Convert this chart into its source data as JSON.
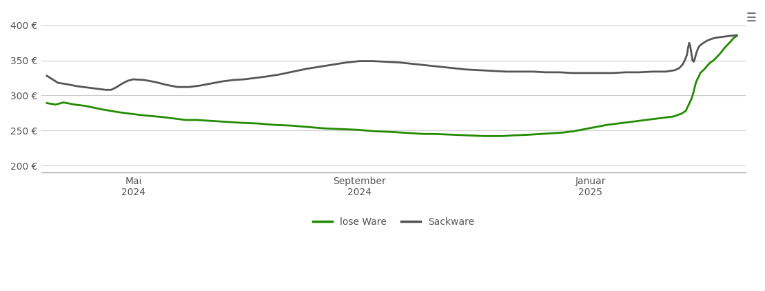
{
  "lose_ware": [
    [
      0,
      289
    ],
    [
      8,
      287
    ],
    [
      15,
      290
    ],
    [
      25,
      287
    ],
    [
      35,
      285
    ],
    [
      50,
      280
    ],
    [
      65,
      276
    ],
    [
      85,
      272
    ],
    [
      105,
      269
    ],
    [
      115,
      267
    ],
    [
      125,
      265
    ],
    [
      135,
      265
    ],
    [
      145,
      264
    ],
    [
      155,
      263
    ],
    [
      165,
      262
    ],
    [
      175,
      261
    ],
    [
      190,
      260
    ],
    [
      205,
      258
    ],
    [
      220,
      257
    ],
    [
      235,
      255
    ],
    [
      250,
      253
    ],
    [
      265,
      252
    ],
    [
      280,
      251
    ],
    [
      295,
      249
    ],
    [
      310,
      248
    ],
    [
      320,
      247
    ],
    [
      330,
      246
    ],
    [
      340,
      245
    ],
    [
      350,
      245
    ],
    [
      365,
      244
    ],
    [
      380,
      243
    ],
    [
      395,
      242
    ],
    [
      410,
      242
    ],
    [
      420,
      243
    ],
    [
      435,
      244
    ],
    [
      445,
      245
    ],
    [
      455,
      246
    ],
    [
      465,
      247
    ],
    [
      475,
      249
    ],
    [
      485,
      252
    ],
    [
      495,
      255
    ],
    [
      505,
      258
    ],
    [
      515,
      260
    ],
    [
      525,
      262
    ],
    [
      535,
      264
    ],
    [
      545,
      266
    ],
    [
      555,
      268
    ],
    [
      565,
      270
    ],
    [
      572,
      274
    ],
    [
      576,
      278
    ],
    [
      578,
      285
    ],
    [
      581,
      295
    ],
    [
      583,
      305
    ],
    [
      584,
      312
    ],
    [
      585,
      318
    ],
    [
      586,
      322
    ],
    [
      587,
      325
    ],
    [
      588,
      328
    ],
    [
      589,
      332
    ],
    [
      591,
      335
    ],
    [
      593,
      338
    ],
    [
      595,
      342
    ],
    [
      598,
      347
    ],
    [
      601,
      350
    ],
    [
      604,
      355
    ],
    [
      607,
      360
    ],
    [
      611,
      368
    ],
    [
      614,
      373
    ],
    [
      617,
      378
    ],
    [
      619,
      382
    ],
    [
      622,
      385
    ]
  ],
  "sackware": [
    [
      0,
      328
    ],
    [
      5,
      323
    ],
    [
      10,
      318
    ],
    [
      18,
      316
    ],
    [
      28,
      313
    ],
    [
      38,
      311
    ],
    [
      48,
      309
    ],
    [
      53,
      308
    ],
    [
      58,
      308
    ],
    [
      63,
      312
    ],
    [
      68,
      317
    ],
    [
      73,
      321
    ],
    [
      78,
      323
    ],
    [
      88,
      322
    ],
    [
      98,
      319
    ],
    [
      108,
      315
    ],
    [
      118,
      312
    ],
    [
      128,
      312
    ],
    [
      138,
      314
    ],
    [
      148,
      317
    ],
    [
      158,
      320
    ],
    [
      168,
      322
    ],
    [
      178,
      323
    ],
    [
      188,
      325
    ],
    [
      198,
      327
    ],
    [
      210,
      330
    ],
    [
      222,
      334
    ],
    [
      234,
      338
    ],
    [
      246,
      341
    ],
    [
      258,
      344
    ],
    [
      270,
      347
    ],
    [
      282,
      349
    ],
    [
      294,
      349
    ],
    [
      306,
      348
    ],
    [
      318,
      347
    ],
    [
      330,
      345
    ],
    [
      342,
      343
    ],
    [
      354,
      341
    ],
    [
      366,
      339
    ],
    [
      378,
      337
    ],
    [
      390,
      336
    ],
    [
      402,
      335
    ],
    [
      414,
      334
    ],
    [
      426,
      334
    ],
    [
      438,
      334
    ],
    [
      450,
      333
    ],
    [
      462,
      333
    ],
    [
      474,
      332
    ],
    [
      486,
      332
    ],
    [
      498,
      332
    ],
    [
      510,
      332
    ],
    [
      522,
      333
    ],
    [
      534,
      333
    ],
    [
      546,
      334
    ],
    [
      558,
      334
    ],
    [
      566,
      336
    ],
    [
      570,
      339
    ],
    [
      573,
      344
    ],
    [
      575,
      350
    ],
    [
      577,
      358
    ],
    [
      578,
      368
    ],
    [
      579,
      375
    ],
    [
      580,
      370
    ],
    [
      581,
      360
    ],
    [
      582,
      350
    ],
    [
      583,
      348
    ],
    [
      584,
      352
    ],
    [
      585,
      358
    ],
    [
      586,
      363
    ],
    [
      587,
      367
    ],
    [
      588,
      370
    ],
    [
      590,
      373
    ],
    [
      592,
      375
    ],
    [
      595,
      378
    ],
    [
      598,
      380
    ],
    [
      602,
      382
    ],
    [
      606,
      383
    ],
    [
      611,
      384
    ],
    [
      616,
      385
    ],
    [
      622,
      386
    ]
  ],
  "y_ticks": [
    200,
    250,
    300,
    350,
    400
  ],
  "y_tick_labels": [
    "200 €",
    "250 €",
    "300 €",
    "350 €",
    "400 €"
  ],
  "ylim": [
    190,
    415
  ],
  "xlim": [
    -5,
    630
  ],
  "x_tick_positions": [
    78,
    282,
    490
  ],
  "x_tick_labels": [
    "Mai\n2024",
    "September\n2024",
    "Januar\n2025"
  ],
  "lose_ware_color": "#228B00",
  "sackware_color": "#555555",
  "grid_color": "#cccccc",
  "bg_color": "#ffffff",
  "legend_lose": "lose Ware",
  "legend_sack": "Sackware",
  "line_width": 2.0
}
